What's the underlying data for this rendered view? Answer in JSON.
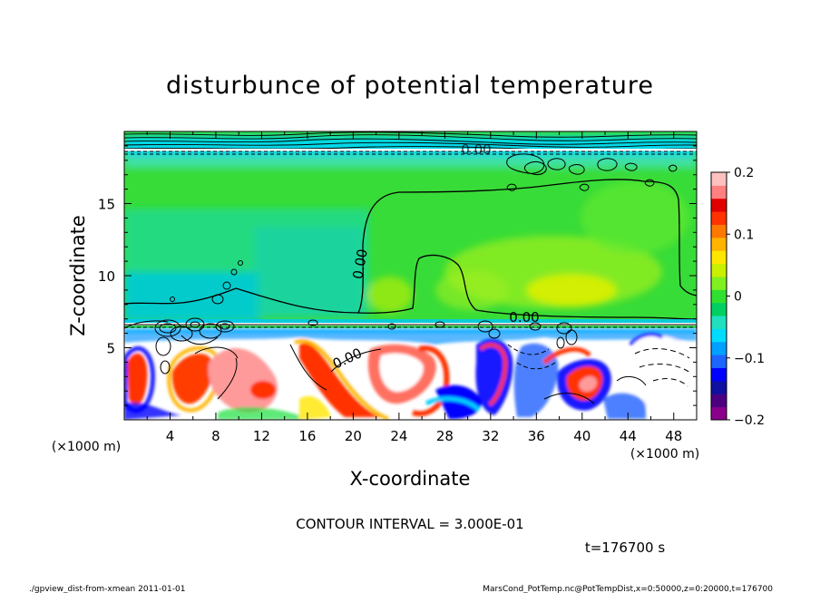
{
  "chart_data": {
    "type": "heatmap",
    "title": "disturbunce of potential temperature",
    "xlabel": "X-coordinate",
    "ylabel": "Z-coordinate",
    "x_unit": "(×1000 m)",
    "y_unit": "(×1000 m)",
    "xlim": [
      0,
      50
    ],
    "ylim": [
      0,
      20
    ],
    "x_ticks": [
      "4",
      "8",
      "12",
      "16",
      "20",
      "24",
      "28",
      "32",
      "36",
      "40",
      "44",
      "48"
    ],
    "y_ticks": [
      "5",
      "10",
      "15"
    ],
    "x_tick_values": [
      4,
      8,
      12,
      16,
      20,
      24,
      28,
      32,
      36,
      40,
      44,
      48
    ],
    "y_tick_values": [
      5,
      10,
      15
    ],
    "colorbar": {
      "min": -0.2,
      "max": 0.2,
      "ticks": [
        "0.2",
        "0.1",
        "0",
        "−0.1",
        "−0.2"
      ],
      "tick_values": [
        0.2,
        0.1,
        0,
        -0.1,
        -0.2
      ],
      "colors": [
        "#8b008b",
        "#4b0082",
        "#1010a0",
        "#0000ff",
        "#1e64ff",
        "#00a0ff",
        "#00dcff",
        "#20e0c0",
        "#00d060",
        "#30e030",
        "#80f020",
        "#c8f000",
        "#ffe600",
        "#ffb400",
        "#ff7800",
        "#ff3200",
        "#e00000",
        "#ff8080",
        "#ffc0c0"
      ]
    },
    "contour_labels": [
      "0.00",
      "0.00",
      "0.00",
      "0.00"
    ],
    "contour_interval": "CONTOUR INTERVAL = 3.000E-01",
    "time_label": "t=176700 s"
  },
  "footer": {
    "left": "./gpview_dist-from-xmean  2011-01-01",
    "right": "MarsCond_PotTemp.nc@PotTempDist,x=0:50000,z=0:20000,t=176700"
  },
  "colors": {
    "background": "#ffffff",
    "field_green": "#38dc38",
    "field_cyan": "#00dcff",
    "contour": "#000000"
  }
}
